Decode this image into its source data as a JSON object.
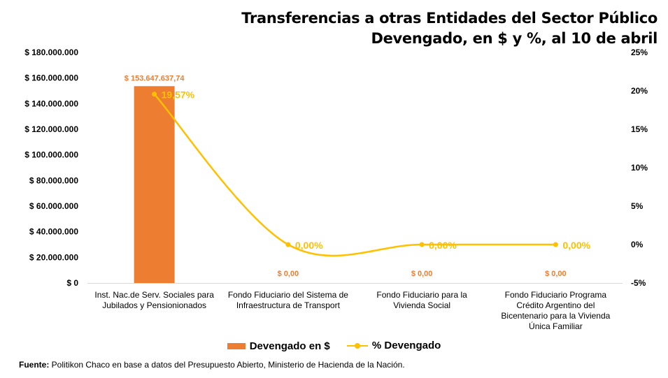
{
  "title_line1": "Transferencias a otras Entidades del  Sector Público",
  "title_line2": "Devengado, en $ y %, al 10 de abril",
  "chart_data": {
    "type": "bar",
    "categories": [
      [
        "Inst. Nac.de Serv. Sociales para",
        "Jubilados y Pensionionados"
      ],
      [
        "Fondo Fiduciario del Sistema de",
        "Infraestructura de Transport"
      ],
      [
        "Fondo Fiduciario para la",
        "Vivienda Social"
      ],
      [
        "Fondo Fiduciario Programa",
        "Crédito Argentino del",
        "Bicentenario para la Vivienda",
        "Única Familiar"
      ]
    ],
    "series": [
      {
        "name": "Devengado en $",
        "type": "bar",
        "axis": "left",
        "color": "#ED7D31",
        "values": [
          153647637.74,
          0,
          0,
          0
        ],
        "labels": [
          "$ 153.647.637,74",
          "$ 0,00",
          "$ 0,00",
          "$ 0,00"
        ]
      },
      {
        "name": "% Devengado",
        "type": "line",
        "smooth": true,
        "axis": "right",
        "color": "#FFC000",
        "values": [
          19.57,
          0,
          0,
          0
        ],
        "labels": [
          "19,57%",
          "0,00%",
          "0,00%",
          "0,00%"
        ]
      }
    ],
    "y_left": {
      "min": 0,
      "max": 180000000,
      "step": 20000000,
      "ticks": [
        "$ 0",
        "$ 20.000.000",
        "$ 40.000.000",
        "$ 60.000.000",
        "$ 80.000.000",
        "$ 100.000.000",
        "$ 120.000.000",
        "$ 140.000.000",
        "$ 160.000.000",
        "$ 180.000.000"
      ]
    },
    "y_right": {
      "min": -5,
      "max": 25,
      "step": 5,
      "ticks": [
        "-5%",
        "0%",
        "5%",
        "10%",
        "15%",
        "20%",
        "25%"
      ]
    },
    "grid": false,
    "legend_position": "bottom"
  },
  "source_label": "Fuente:",
  "source_text": " Politikon Chaco en base a datos del Presupuesto Abierto, Ministerio de Hacienda de la Nación."
}
